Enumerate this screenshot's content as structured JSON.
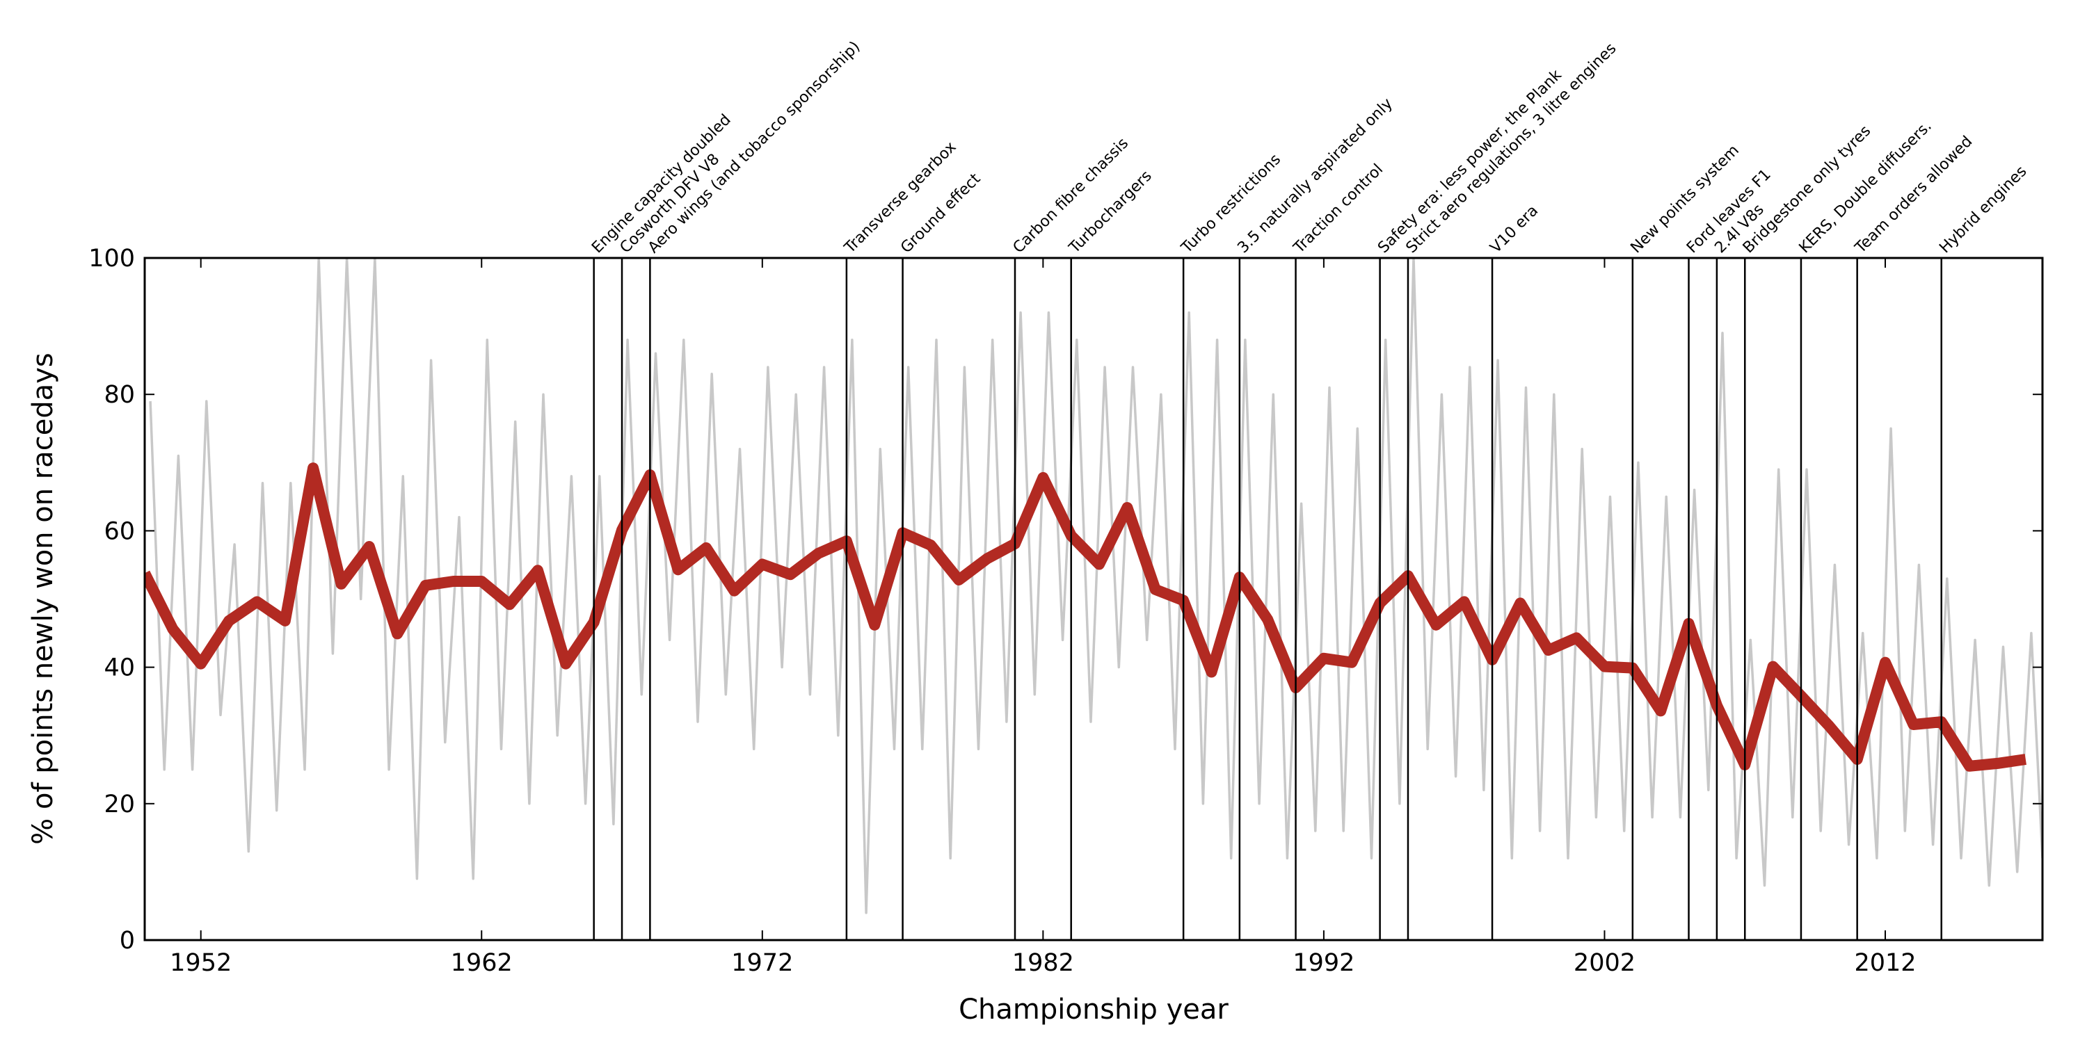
{
  "chart_data": {
    "type": "line",
    "xlabel": "Championship year",
    "ylabel": "% of points newly won on racedays",
    "xlim": [
      1950,
      2017.6
    ],
    "ylim": [
      0,
      100
    ],
    "xticks": [
      1952,
      1962,
      1972,
      1982,
      1992,
      2002,
      2012
    ],
    "yticks": [
      0,
      20,
      40,
      60,
      80,
      100
    ],
    "grid": false,
    "series": [
      {
        "color": "#c8c8c8",
        "x": [
          1950.2,
          1950.7,
          1951.2,
          1951.7,
          1952.2,
          1952.7,
          1953.2,
          1953.7,
          1954.2,
          1954.7,
          1955.2,
          1955.7,
          1956.2,
          1956.7,
          1957.2,
          1957.7,
          1958.2,
          1958.7,
          1959.2,
          1959.7,
          1960.2,
          1960.7,
          1961.2,
          1961.7,
          1962.2,
          1962.7,
          1963.2,
          1963.7,
          1964.2,
          1964.7,
          1965.2,
          1965.7,
          1966.2,
          1966.7,
          1967.2,
          1967.7,
          1968.2,
          1968.7,
          1969.2,
          1969.7,
          1970.2,
          1970.7,
          1971.2,
          1971.7,
          1972.2,
          1972.7,
          1973.2,
          1973.7,
          1974.2,
          1974.7,
          1975.2,
          1975.7,
          1976.2,
          1976.7,
          1977.2,
          1977.7,
          1978.2,
          1978.7,
          1979.2,
          1979.7,
          1980.2,
          1980.7,
          1981.2,
          1981.7,
          1982.2,
          1982.7,
          1983.2,
          1983.7,
          1984.2,
          1984.7,
          1985.2,
          1985.7,
          1986.2,
          1986.7,
          1987.2,
          1987.7,
          1988.2,
          1988.7,
          1989.2,
          1989.7,
          1990.2,
          1990.7,
          1991.2,
          1991.7,
          1992.2,
          1992.7,
          1993.2,
          1993.7,
          1994.2,
          1994.7,
          1995.2,
          1995.7,
          1996.2,
          1996.7,
          1997.2,
          1997.7,
          1998.2,
          1998.7,
          1999.2,
          1999.7,
          2000.2,
          2000.7,
          2001.2,
          2001.7,
          2002.2,
          2002.7,
          2003.2,
          2003.7,
          2004.2,
          2004.7,
          2005.2,
          2005.7,
          2006.2,
          2006.7,
          2007.2,
          2007.7,
          2008.2,
          2008.7,
          2009.2,
          2009.7,
          2010.2,
          2010.7,
          2011.2,
          2011.7,
          2012.2,
          2012.7,
          2013.2,
          2013.7,
          2014.2,
          2014.7,
          2015.2,
          2015.7,
          2016.2,
          2016.7,
          2017.2,
          2017.6
        ],
        "values": [
          79,
          25,
          71,
          25,
          79,
          33,
          58,
          13,
          67,
          19,
          67,
          25,
          100,
          42,
          100,
          50,
          100,
          25,
          68,
          9,
          85,
          29,
          62,
          9,
          88,
          28,
          76,
          20,
          80,
          30,
          68,
          20,
          68,
          17,
          88,
          36,
          86,
          44,
          88,
          32,
          83,
          36,
          72,
          28,
          84,
          40,
          80,
          36,
          84,
          30,
          88,
          4,
          72,
          28,
          84,
          28,
          88,
          12,
          84,
          28,
          88,
          32,
          92,
          36,
          92,
          44,
          88,
          32,
          84,
          40,
          84,
          44,
          80,
          28,
          92,
          20,
          88,
          12,
          88,
          20,
          80,
          12,
          64,
          16,
          81,
          16,
          75,
          12,
          88,
          20,
          100,
          28,
          80,
          24,
          84,
          22,
          85,
          12,
          81,
          16,
          80,
          12,
          72,
          18,
          65,
          16,
          70,
          18,
          65,
          18,
          66,
          22,
          89,
          12,
          44,
          8,
          69,
          18,
          69,
          16,
          55,
          14,
          45,
          12,
          75,
          16,
          55,
          14,
          53,
          12,
          44,
          8,
          43,
          10,
          45,
          12
        ]
      },
      {
        "color": "#b22a22",
        "x": [
          1950,
          1951,
          1952,
          1953,
          1954,
          1955,
          1956,
          1957,
          1958,
          1959,
          1960,
          1961,
          1962,
          1963,
          1964,
          1965,
          1966,
          1967,
          1968,
          1969,
          1970,
          1971,
          1972,
          1973,
          1974,
          1975,
          1976,
          1977,
          1978,
          1979,
          1980,
          1981,
          1982,
          1983,
          1984,
          1985,
          1986,
          1987,
          1988,
          1989,
          1990,
          1991,
          1992,
          1993,
          1994,
          1995,
          1996,
          1997,
          1998,
          1999,
          2000,
          2001,
          2002,
          2003,
          2004,
          2005,
          2006,
          2007,
          2008,
          2009,
          2010,
          2011,
          2012,
          2013,
          2014,
          2015,
          2016,
          2017
        ],
        "values": [
          53.8,
          45.6,
          40.5,
          46.8,
          49.6,
          46.8,
          69.2,
          52.2,
          57.7,
          44.9,
          52.0,
          52.6,
          52.6,
          49.2,
          54.2,
          40.5,
          46.6,
          60.1,
          68.2,
          54.3,
          57.5,
          51.2,
          55.1,
          53.6,
          56.7,
          58.5,
          46.2,
          59.7,
          57.9,
          52.8,
          55.9,
          58.1,
          67.8,
          59.3,
          55.1,
          63.4,
          51.4,
          49.8,
          39.3,
          53.2,
          47.0,
          37.0,
          41.3,
          40.7,
          49.4,
          53.4,
          46.2,
          49.6,
          41.1,
          49.4,
          42.5,
          44.3,
          40.1,
          39.9,
          33.6,
          46.4,
          34.4,
          25.7,
          40.1,
          35.8,
          31.4,
          26.5,
          40.7,
          31.6,
          32.0,
          25.5,
          25.9,
          26.5
        ]
      }
    ],
    "annotations": [
      {
        "x": 1966,
        "label": "Engine capacity doubled"
      },
      {
        "x": 1967,
        "label": "Cosworth DFV V8"
      },
      {
        "x": 1968,
        "label": "Aero wings (and tobacco sponsorship)"
      },
      {
        "x": 1975,
        "label": "Transverse gearbox"
      },
      {
        "x": 1977,
        "label": "Ground effect"
      },
      {
        "x": 1981,
        "label": "Carbon fibre chassis"
      },
      {
        "x": 1983,
        "label": "Turbochargers"
      },
      {
        "x": 1987,
        "label": "Turbo restrictions"
      },
      {
        "x": 1989,
        "label": "3.5 naturally aspirated only"
      },
      {
        "x": 1991,
        "label": "Traction control"
      },
      {
        "x": 1994,
        "label": "Safety era: less power, the Plank"
      },
      {
        "x": 1995,
        "label": "Strict aero regulations, 3 litre engines"
      },
      {
        "x": 1998,
        "label": "V10 era"
      },
      {
        "x": 2003,
        "label": "New points system"
      },
      {
        "x": 2005,
        "label": "Ford leaves F1"
      },
      {
        "x": 2006,
        "label": "2.4l V8s"
      },
      {
        "x": 2007,
        "label": "Bridgestone only tyres"
      },
      {
        "x": 2009,
        "label": "KERS, Double diffusers."
      },
      {
        "x": 2011,
        "label": "Team orders allowed"
      },
      {
        "x": 2014,
        "label": "Hybrid engines"
      }
    ]
  }
}
